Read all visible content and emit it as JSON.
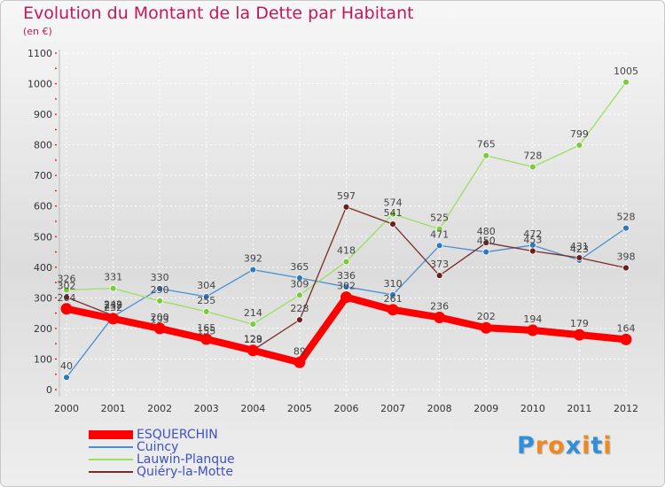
{
  "header": {
    "title": "Evolution du Montant de la Dette par Habitant",
    "subtitle": "(en €)"
  },
  "brand": {
    "letters": [
      "P",
      "r",
      "o",
      "x",
      "i",
      "t",
      "i"
    ],
    "colors": [
      "#2f8fd8",
      "#ee8a1c",
      "#ee8a1c",
      "#2f8fd8",
      "#ee8a1c",
      "#2f8fd8",
      "#ee8a1c"
    ]
  },
  "chart_data": {
    "type": "line",
    "title": "Evolution du Montant de la Dette par Habitant",
    "ylabel": "(en €)",
    "xlabel": "",
    "categories": [
      "2000",
      "2001",
      "2002",
      "2003",
      "2004",
      "2005",
      "2006",
      "2007",
      "2008",
      "2009",
      "2010",
      "2011",
      "2012"
    ],
    "ylim": [
      0,
      1100
    ],
    "yticks": [
      0,
      100,
      200,
      300,
      400,
      500,
      600,
      700,
      800,
      900,
      1000,
      1100
    ],
    "grid": true,
    "legend_position": "bottom-left",
    "series": [
      {
        "name": "Cuincy",
        "color": "#4a8fd0",
        "marker": "#2f78c2",
        "values": [
          40,
          239,
          330,
          304,
          392,
          365,
          336,
          310,
          471,
          450,
          472,
          423,
          528
        ],
        "labels": [
          "40",
          "239",
          "330",
          "304",
          "392",
          "365",
          "336",
          "310",
          "471",
          "450",
          "472",
          "423",
          "528"
        ]
      },
      {
        "name": "Lauwin-Planque",
        "color": "#99e060",
        "marker": "#7acc3a",
        "values": [
          326,
          331,
          290,
          255,
          214,
          309,
          418,
          574,
          525,
          765,
          728,
          799,
          1005
        ],
        "labels": [
          "326",
          "331",
          "290",
          "255",
          "214",
          "309",
          "418",
          "574",
          "525",
          "765",
          "728",
          "799",
          "1005"
        ]
      },
      {
        "name": "Quiéry-la-Motte",
        "color": "#7b2b2b",
        "marker": "#6b1f1f",
        "values": [
          302,
          242,
          193,
          155,
          129,
          228,
          597,
          541,
          373,
          480,
          453,
          431,
          398
        ],
        "labels": [
          "302",
          "242",
          "193",
          "155",
          "129",
          "228",
          "597",
          "541",
          "373",
          "480",
          "453",
          "431",
          "398"
        ]
      },
      {
        "name": "ESQUERCHIN",
        "color": "#ff0000",
        "marker": "#ff0000",
        "highlight": true,
        "values": [
          264,
          232,
          200,
          165,
          128,
          89,
          302,
          261,
          236,
          202,
          194,
          179,
          164
        ],
        "labels": [
          "264",
          "232",
          "200",
          "165",
          "128",
          "89",
          "302",
          "261",
          "236",
          "202",
          "194",
          "179",
          "164"
        ]
      }
    ]
  },
  "legend": {
    "items": [
      {
        "name": "ESQUERCHIN",
        "color": "#ff0000"
      },
      {
        "name": "Cuincy",
        "color": "#4a8fd0"
      },
      {
        "name": "Lauwin-Planque",
        "color": "#99e060"
      },
      {
        "name": "Quiéry-la-Motte",
        "color": "#7b2b2b"
      }
    ]
  }
}
